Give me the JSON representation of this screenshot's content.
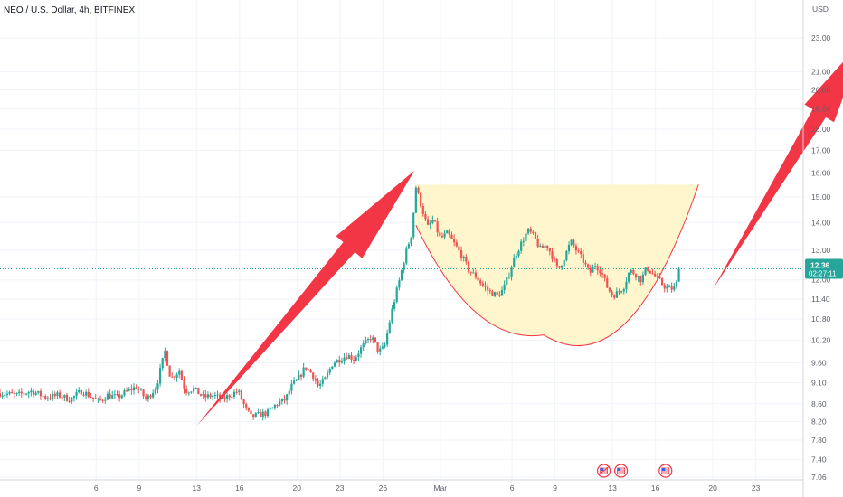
{
  "chart_data": {
    "type": "candlestick",
    "title": "NEO / U.S. Dollar, 4h, BITFINEX",
    "currency": "USD",
    "y_scale": "log",
    "ylim": [
      7.06,
      25.0
    ],
    "y_ticks": [
      "7.06",
      "7.40",
      "7.80",
      "8.20",
      "8.60",
      "9.10",
      "9.60",
      "10.20",
      "10.80",
      "11.40",
      "12.00",
      "13.00",
      "14.00",
      "15.00",
      "16.00",
      "17.00",
      "18.00",
      "19.00",
      "20.00",
      "21.00",
      "23.00"
    ],
    "x_ticks": [
      "6",
      "9",
      "13",
      "16",
      "20",
      "23",
      "26",
      "Mar",
      "6",
      "9",
      "13",
      "16",
      "20",
      "23"
    ],
    "x_tick_days": [
      0,
      3,
      7,
      10,
      14,
      17,
      20,
      24,
      29,
      32,
      36,
      39,
      43,
      46
    ],
    "x_window_days": [
      -6.7,
      49.3
    ],
    "last_price": "12.36",
    "countdown": "02:27:11",
    "colors": {
      "up": "#26a69a",
      "down": "#ef5350",
      "arrow": "#f23645",
      "cup_fill": "#fff5c4",
      "cup_line": "#f23645"
    },
    "path": [
      [
        -6.7,
        8.85
      ],
      [
        -5.5,
        8.8
      ],
      [
        -4.5,
        8.9
      ],
      [
        -3.5,
        8.75
      ],
      [
        -2.6,
        8.8
      ],
      [
        -1.8,
        8.7
      ],
      [
        -1.0,
        8.9
      ],
      [
        0.2,
        8.65
      ],
      [
        0.8,
        8.8
      ],
      [
        1.5,
        8.75
      ],
      [
        2.2,
        8.9
      ],
      [
        2.8,
        9.0
      ],
      [
        3.5,
        8.7
      ],
      [
        4.2,
        9.0
      ],
      [
        4.8,
        9.9
      ],
      [
        5.2,
        9.2
      ],
      [
        5.8,
        9.4
      ],
      [
        6.2,
        8.9
      ],
      [
        6.8,
        8.95
      ],
      [
        7.5,
        8.75
      ],
      [
        8.2,
        8.8
      ],
      [
        8.8,
        8.7
      ],
      [
        9.3,
        8.8
      ],
      [
        9.9,
        8.9
      ],
      [
        10.4,
        8.5
      ],
      [
        10.8,
        8.3
      ],
      [
        11.4,
        8.35
      ],
      [
        12.0,
        8.4
      ],
      [
        12.6,
        8.6
      ],
      [
        13.2,
        8.7
      ],
      [
        13.6,
        9.0
      ],
      [
        14.1,
        9.2
      ],
      [
        14.6,
        9.5
      ],
      [
        15.1,
        9.3
      ],
      [
        15.5,
        9.0
      ],
      [
        16.0,
        9.2
      ],
      [
        16.5,
        9.6
      ],
      [
        17.0,
        9.7
      ],
      [
        17.5,
        9.8
      ],
      [
        18.0,
        9.7
      ],
      [
        18.5,
        10.0
      ],
      [
        19.2,
        10.3
      ],
      [
        19.7,
        9.9
      ],
      [
        20.1,
        10.0
      ],
      [
        20.6,
        11.0
      ],
      [
        21.1,
        11.9
      ],
      [
        21.6,
        12.9
      ],
      [
        22.0,
        13.6
      ],
      [
        22.3,
        15.4
      ],
      [
        22.7,
        14.6
      ],
      [
        23.1,
        13.8
      ],
      [
        23.5,
        14.1
      ],
      [
        24.0,
        13.4
      ],
      [
        24.5,
        13.6
      ],
      [
        25.0,
        13.2
      ],
      [
        25.5,
        12.8
      ],
      [
        26.0,
        12.3
      ],
      [
        26.5,
        12.1
      ],
      [
        27.0,
        11.8
      ],
      [
        27.5,
        11.6
      ],
      [
        28.0,
        11.5
      ],
      [
        28.4,
        11.7
      ],
      [
        28.8,
        12.2
      ],
      [
        29.2,
        12.8
      ],
      [
        29.7,
        13.3
      ],
      [
        30.1,
        13.7
      ],
      [
        30.5,
        13.5
      ],
      [
        31.0,
        13.0
      ],
      [
        31.4,
        13.2
      ],
      [
        31.8,
        12.8
      ],
      [
        32.2,
        12.3
      ],
      [
        32.7,
        12.8
      ],
      [
        33.1,
        13.3
      ],
      [
        33.6,
        12.9
      ],
      [
        34.0,
        12.6
      ],
      [
        34.4,
        12.2
      ],
      [
        34.8,
        12.5
      ],
      [
        35.2,
        12.3
      ],
      [
        35.6,
        11.8
      ],
      [
        36.0,
        11.5
      ],
      [
        36.4,
        11.6
      ],
      [
        36.8,
        11.8
      ],
      [
        37.2,
        12.3
      ],
      [
        37.6,
        12.2
      ],
      [
        38.0,
        12.0
      ],
      [
        38.4,
        12.4
      ],
      [
        38.8,
        12.2
      ],
      [
        39.2,
        12.0
      ],
      [
        39.6,
        11.8
      ],
      [
        40.0,
        11.7
      ],
      [
        40.4,
        11.75
      ],
      [
        40.7,
        12.35
      ]
    ],
    "annotations": {
      "cup": {
        "top_price": 15.5,
        "bottom_price": 10.35,
        "start_day": 22.3,
        "bottom_day": 31.2,
        "end_day": 42.0
      },
      "arrows": [
        {
          "from": [
            7.0,
            8.1
          ],
          "to": [
            22.2,
            16.1
          ]
        },
        {
          "from": [
            43.0,
            11.7
          ],
          "to": [
            53.6,
            23.0
          ]
        }
      ],
      "event_markers": [
        {
          "day": 35.4,
          "kind": "flag-cluster"
        },
        {
          "day": 36.6,
          "kind": "flag"
        },
        {
          "day": 39.7,
          "kind": "flag"
        }
      ]
    }
  }
}
